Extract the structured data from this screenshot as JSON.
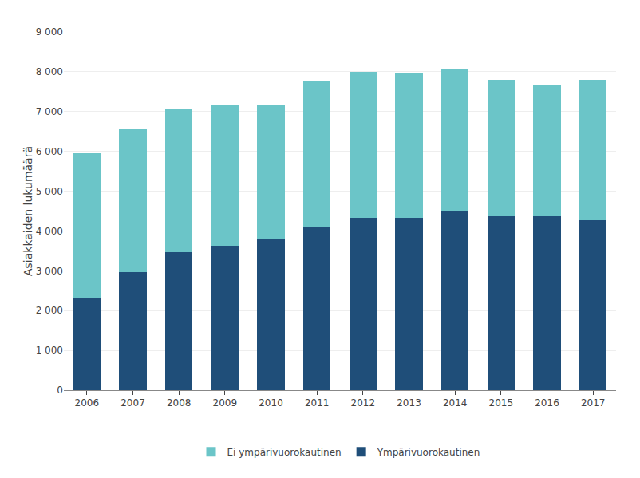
{
  "chart_data": {
    "type": "bar",
    "stacked": true,
    "categories": [
      "2006",
      "2007",
      "2008",
      "2009",
      "2010",
      "2011",
      "2012",
      "2013",
      "2014",
      "2015",
      "2016",
      "2017"
    ],
    "series": [
      {
        "name": "Ympärivuorokautinen",
        "color": "#1F4E79",
        "values": [
          2300,
          2970,
          3470,
          3630,
          3790,
          4080,
          4320,
          4320,
          4520,
          4360,
          4360,
          4260
        ]
      },
      {
        "name": "Ei ympärivuorokautinen",
        "color": "#6BC5C8",
        "values": [
          3650,
          3590,
          3590,
          3520,
          3390,
          3700,
          3680,
          3650,
          3530,
          3430,
          3310,
          3530
        ]
      }
    ],
    "ylabel": "Asiakkaiden lukumäärä",
    "ylim": [
      0,
      9000
    ],
    "yticks": [
      0,
      {
        "value": 1000,
        "label": "1 000"
      },
      {
        "value": 2000,
        "label": "2 000"
      },
      {
        "value": 3000,
        "label": "3 000"
      },
      {
        "value": 4000,
        "label": "4 000"
      },
      {
        "value": 5000,
        "label": "5 000"
      },
      {
        "value": 6000,
        "label": "6 000"
      },
      {
        "value": 7000,
        "label": "7 000"
      },
      {
        "value": 8000,
        "label": "8 000"
      },
      {
        "value": 9000,
        "label": "9 000"
      }
    ],
    "grid": true,
    "legend": "bottom"
  }
}
